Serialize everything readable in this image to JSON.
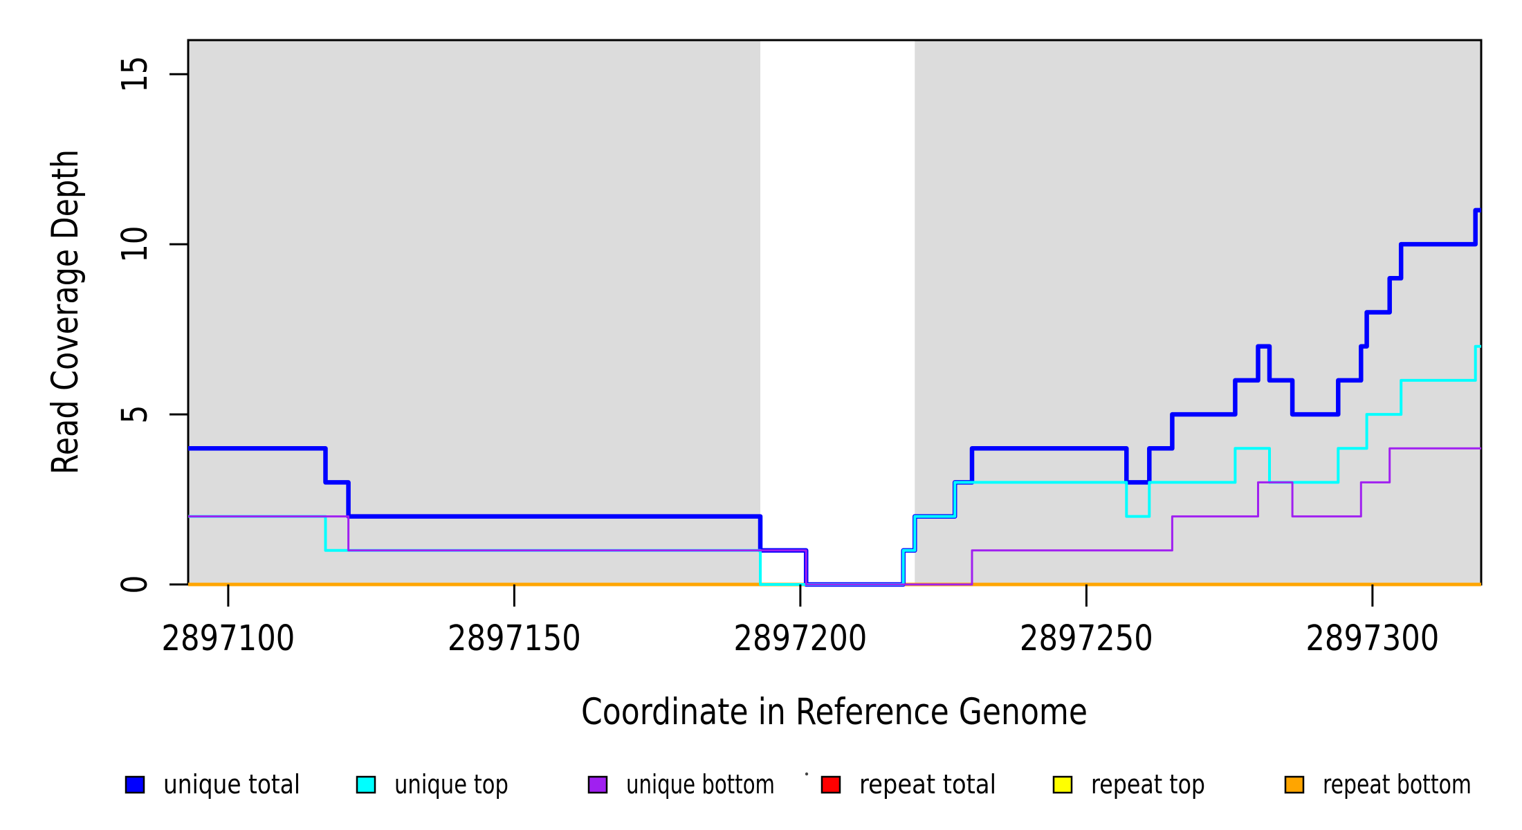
{
  "chart_data": {
    "type": "line",
    "subtype": "step",
    "title": "",
    "xlabel": "Coordinate in Reference Genome",
    "ylabel": "Read Coverage Depth",
    "xlim": [
      2897093,
      2897319
    ],
    "ylim": [
      0,
      16
    ],
    "x_ticks": [
      2897100,
      2897150,
      2897200,
      2897250,
      2897300
    ],
    "y_ticks": [
      0,
      5,
      10,
      15
    ],
    "grid": false,
    "legend_position": "bottom",
    "shaded_regions": {
      "color": "#DCDCDC",
      "ranges": [
        [
          2897093,
          2897193
        ],
        [
          2897220,
          2897319
        ]
      ]
    },
    "series": [
      {
        "name": "repeat total",
        "color": "#FF0000",
        "lwd": 5,
        "steps": [
          [
            2897093,
            0
          ]
        ]
      },
      {
        "name": "repeat top",
        "color": "#FFFF00",
        "lwd": 5,
        "steps": [
          [
            2897093,
            0
          ]
        ]
      },
      {
        "name": "repeat bottom",
        "color": "#FFA500",
        "lwd": 5,
        "steps": [
          [
            2897093,
            0
          ]
        ]
      },
      {
        "name": "unique total",
        "color": "#0000FF",
        "lwd": 6.5,
        "steps": [
          [
            2897093,
            4
          ],
          [
            2897117,
            3
          ],
          [
            2897121,
            2
          ],
          [
            2897193,
            1
          ],
          [
            2897201,
            0
          ],
          [
            2897218,
            1
          ],
          [
            2897220,
            2
          ],
          [
            2897227,
            3
          ],
          [
            2897230,
            4
          ],
          [
            2897257,
            3
          ],
          [
            2897261,
            4
          ],
          [
            2897265,
            5
          ],
          [
            2897276,
            6
          ],
          [
            2897280,
            7
          ],
          [
            2897282,
            6
          ],
          [
            2897286,
            5
          ],
          [
            2897294,
            6
          ],
          [
            2897298,
            7
          ],
          [
            2897299,
            8
          ],
          [
            2897303,
            9
          ],
          [
            2897305,
            10
          ],
          [
            2897318,
            11
          ]
        ]
      },
      {
        "name": "unique top",
        "color": "#00FFFF",
        "lwd": 4,
        "steps": [
          [
            2897093,
            2
          ],
          [
            2897117,
            1
          ],
          [
            2897193,
            0
          ],
          [
            2897218,
            1
          ],
          [
            2897220,
            2
          ],
          [
            2897227,
            3
          ],
          [
            2897257,
            2
          ],
          [
            2897261,
            3
          ],
          [
            2897276,
            4
          ],
          [
            2897282,
            3
          ],
          [
            2897294,
            4
          ],
          [
            2897299,
            5
          ],
          [
            2897305,
            6
          ],
          [
            2897318,
            7
          ]
        ]
      },
      {
        "name": "unique bottom",
        "color": "#A020F0",
        "lwd": 3,
        "steps": [
          [
            2897093,
            2
          ],
          [
            2897121,
            1
          ],
          [
            2897201,
            0
          ],
          [
            2897230,
            1
          ],
          [
            2897265,
            2
          ],
          [
            2897280,
            3
          ],
          [
            2897286,
            2
          ],
          [
            2897298,
            3
          ],
          [
            2897303,
            4
          ]
        ]
      }
    ],
    "legend": [
      {
        "label": "unique total",
        "color": "#0000FF"
      },
      {
        "label": "unique top",
        "color": "#00FFFF"
      },
      {
        "label": "unique bottom",
        "color": "#A020F0"
      },
      {
        "label": "repeat total",
        "color": "#FF0000"
      },
      {
        "label": "repeat top",
        "color": "#FFFF00"
      },
      {
        "label": "repeat bottom",
        "color": "#FFA500"
      }
    ]
  }
}
